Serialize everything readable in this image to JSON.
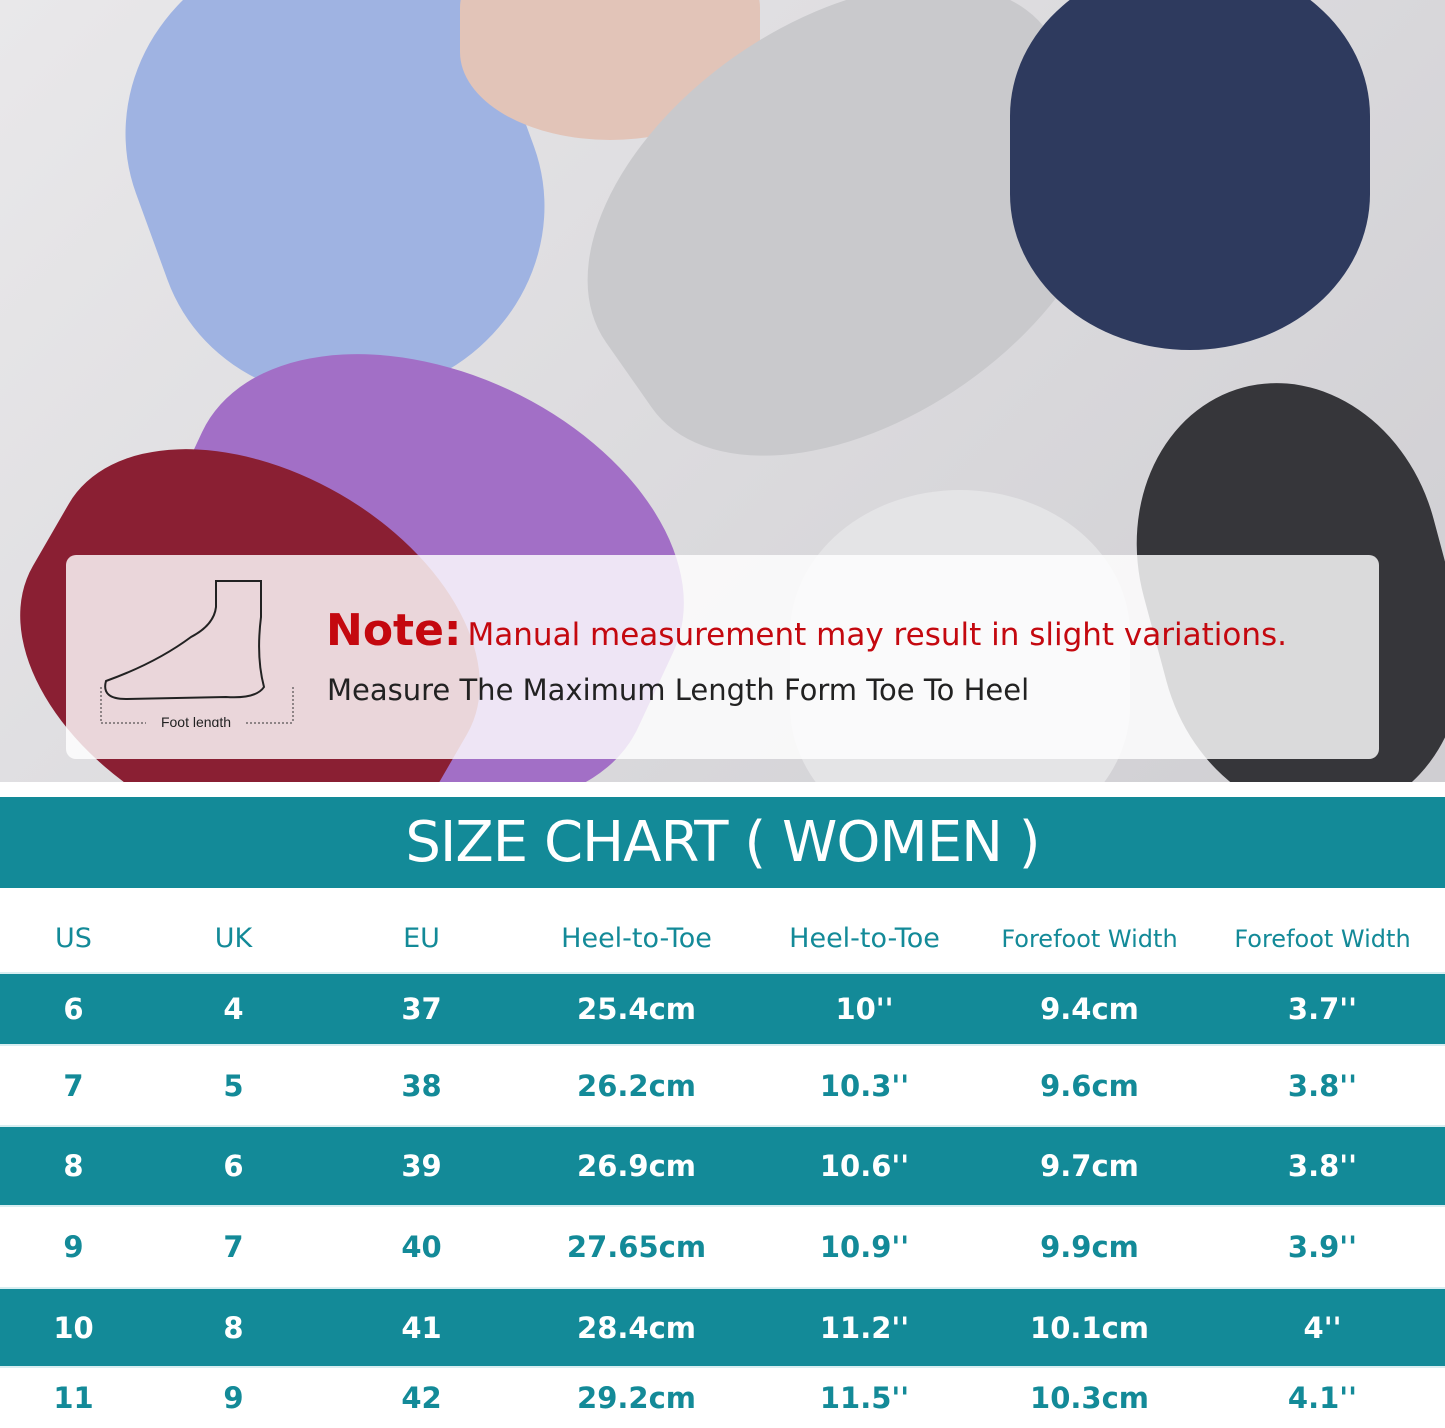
{
  "note": {
    "label": "Note:",
    "text": "Manual measurement may result in slight variations.",
    "subtext": "Measure The Maximum Length Form Toe To Heel",
    "diagram_label": "Foot length"
  },
  "title": "SIZE CHART ( WOMEN )",
  "colors": {
    "teal": "#138a98",
    "note_red": "#c4080f"
  },
  "table": {
    "headers": [
      "US",
      "UK",
      "EU",
      "Heel-to-Toe",
      "Heel-to-Toe",
      "Forefoot Width",
      "Forefoot Width"
    ],
    "rows": [
      [
        "6",
        "4",
        "37",
        "25.4cm",
        "10''",
        "9.4cm",
        "3.7''"
      ],
      [
        "7",
        "5",
        "38",
        "26.2cm",
        "10.3''",
        "9.6cm",
        "3.8''"
      ],
      [
        "8",
        "6",
        "39",
        "26.9cm",
        "10.6''",
        "9.7cm",
        "3.8''"
      ],
      [
        "9",
        "7",
        "40",
        "27.65cm",
        "10.9''",
        "9.9cm",
        "3.9''"
      ],
      [
        "10",
        "8",
        "41",
        "28.4cm",
        "11.2''",
        "10.1cm",
        "4''"
      ],
      [
        "11",
        "9",
        "42",
        "29.2cm",
        "11.5''",
        "10.3cm",
        "4.1''"
      ]
    ]
  }
}
